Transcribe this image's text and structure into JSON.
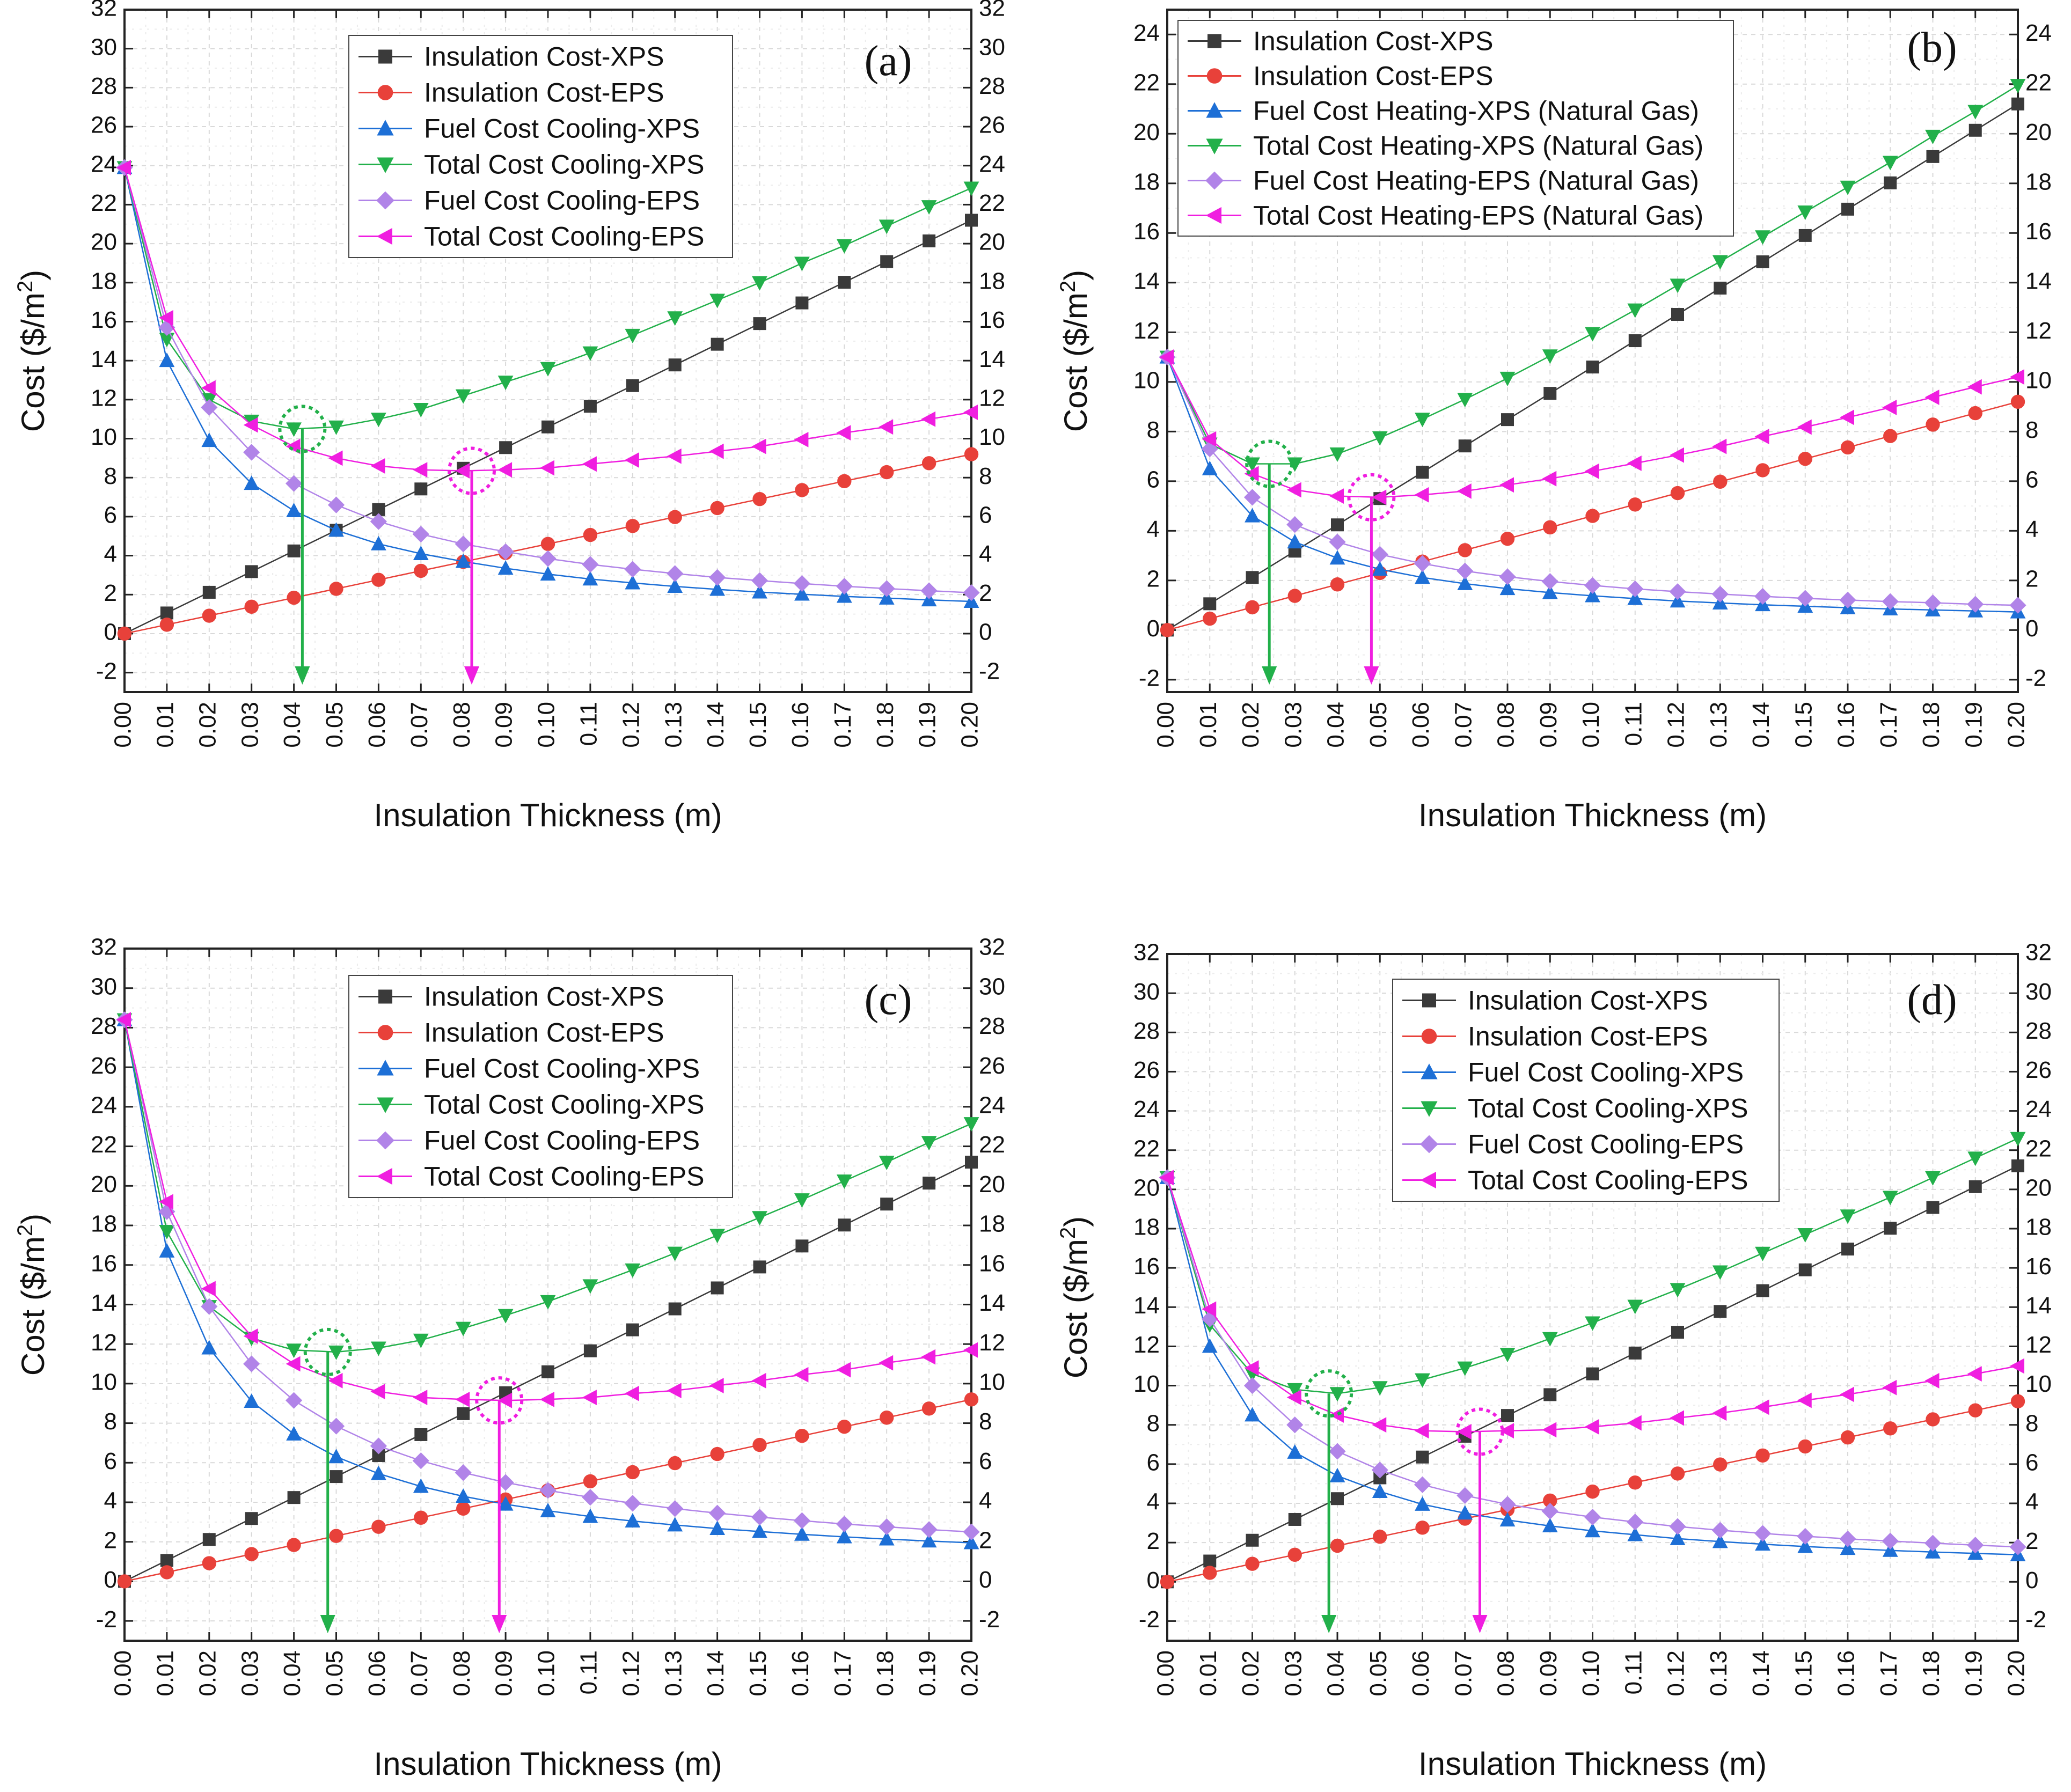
{
  "chart_data": [
    {
      "type": "line",
      "panel_label": "(a)",
      "xlabel": "Insulation Thickness (m)",
      "ylabel": "Cost ($/m",
      "ylabel_sup": "2",
      "ylabel_close": ")",
      "xlim": [
        0,
        0.2
      ],
      "ylim": [
        -3,
        32
      ],
      "x_ticks": [
        "0.00",
        "0.01",
        "0.02",
        "0.03",
        "0.04",
        "0.05",
        "0.06",
        "0.07",
        "0.08",
        "0.09",
        "0.10",
        "0.11",
        "0.12",
        "0.13",
        "0.14",
        "0.15",
        "0.16",
        "0.17",
        "0.18",
        "0.19",
        "0.20"
      ],
      "y_ticks": [
        -2,
        0,
        2,
        4,
        6,
        8,
        10,
        12,
        14,
        16,
        18,
        20,
        22,
        24,
        26,
        28,
        30,
        32
      ],
      "grid": true,
      "legend_position": "top-center",
      "x": [
        0,
        0.01,
        0.02,
        0.03,
        0.04,
        0.05,
        0.06,
        0.07,
        0.08,
        0.09,
        0.1,
        0.11,
        0.12,
        0.13,
        0.14,
        0.15,
        0.16,
        0.17,
        0.18,
        0.19,
        0.2
      ],
      "series": [
        {
          "name": "Insulation Cost-XPS",
          "color": "#3a3a3a",
          "marker": "square",
          "values": [
            0,
            1.06,
            2.12,
            3.18,
            4.24,
            5.3,
            6.36,
            7.42,
            8.48,
            9.54,
            10.6,
            11.66,
            12.72,
            13.78,
            14.84,
            15.9,
            16.96,
            18.02,
            19.08,
            20.14,
            21.2
          ]
        },
        {
          "name": "Insulation Cost-EPS",
          "color": "#e8413a",
          "marker": "circle",
          "values": [
            0,
            0.46,
            0.92,
            1.38,
            1.84,
            2.3,
            2.76,
            3.22,
            3.68,
            4.14,
            4.6,
            5.06,
            5.52,
            5.98,
            6.44,
            6.9,
            7.36,
            7.82,
            8.28,
            8.74,
            9.2
          ]
        },
        {
          "name": "Fuel Cost Cooling-XPS",
          "color": "#1d6fd6",
          "marker": "triangle-up",
          "values": [
            23.9,
            14.0,
            9.9,
            7.7,
            6.3,
            5.3,
            4.6,
            4.1,
            3.7,
            3.35,
            3.05,
            2.8,
            2.6,
            2.42,
            2.27,
            2.13,
            2.02,
            1.91,
            1.82,
            1.73,
            1.65
          ]
        },
        {
          "name": "Total Cost Cooling-XPS",
          "color": "#22b04a",
          "marker": "triangle-down",
          "values": [
            23.9,
            15.1,
            12.0,
            10.9,
            10.5,
            10.6,
            11.0,
            11.5,
            12.2,
            12.9,
            13.6,
            14.4,
            15.3,
            16.2,
            17.1,
            18.0,
            19.0,
            19.9,
            20.9,
            21.9,
            22.85
          ]
        },
        {
          "name": "Fuel Cost Cooling-EPS",
          "color": "#b184e8",
          "marker": "diamond",
          "values": [
            23.9,
            15.7,
            11.6,
            9.3,
            7.7,
            6.6,
            5.75,
            5.1,
            4.6,
            4.2,
            3.85,
            3.55,
            3.3,
            3.08,
            2.88,
            2.72,
            2.57,
            2.43,
            2.31,
            2.2,
            2.1
          ]
        },
        {
          "name": "Total Cost Cooling-EPS",
          "color": "#f01ee0",
          "marker": "triangle-left",
          "values": [
            23.9,
            16.2,
            12.6,
            10.7,
            9.6,
            9.0,
            8.6,
            8.4,
            8.35,
            8.4,
            8.5,
            8.7,
            8.9,
            9.1,
            9.35,
            9.6,
            9.95,
            10.3,
            10.6,
            11.0,
            11.35
          ]
        }
      ],
      "annotations": [
        {
          "type": "optimum-marker",
          "x": 0.042,
          "y": 10.5,
          "color": "#22b04a"
        },
        {
          "type": "optimum-marker",
          "x": 0.082,
          "y": 8.35,
          "color": "#f01ee0"
        }
      ]
    },
    {
      "type": "line",
      "panel_label": "(b)",
      "xlabel": "Insulation Thickness (m)",
      "ylabel": "Cost ($/m",
      "ylabel_sup": "2",
      "ylabel_close": ")",
      "xlim": [
        0,
        0.2
      ],
      "ylim": [
        -2.5,
        25
      ],
      "x_ticks": [
        "0.00",
        "0.01",
        "0.02",
        "0.03",
        "0.04",
        "0.05",
        "0.06",
        "0.07",
        "0.08",
        "0.09",
        "0.10",
        "0.11",
        "0.12",
        "0.13",
        "0.14",
        "0.15",
        "0.16",
        "0.17",
        "0.18",
        "0.19",
        "0.20"
      ],
      "y_ticks": [
        -2,
        0,
        2,
        4,
        6,
        8,
        10,
        12,
        14,
        16,
        18,
        20,
        22,
        24
      ],
      "grid": true,
      "legend_position": "top-center",
      "x": [
        0,
        0.01,
        0.02,
        0.03,
        0.04,
        0.05,
        0.06,
        0.07,
        0.08,
        0.09,
        0.1,
        0.11,
        0.12,
        0.13,
        0.14,
        0.15,
        0.16,
        0.17,
        0.18,
        0.19,
        0.2
      ],
      "series": [
        {
          "name": "Insulation Cost-XPS",
          "color": "#3a3a3a",
          "marker": "square",
          "values": [
            0,
            1.06,
            2.12,
            3.18,
            4.24,
            5.3,
            6.36,
            7.42,
            8.48,
            9.54,
            10.6,
            11.66,
            12.72,
            13.78,
            14.84,
            15.9,
            16.96,
            18.02,
            19.08,
            20.14,
            21.2
          ]
        },
        {
          "name": "Insulation Cost-EPS",
          "color": "#e8413a",
          "marker": "circle",
          "values": [
            0,
            0.46,
            0.92,
            1.38,
            1.84,
            2.3,
            2.76,
            3.22,
            3.68,
            4.14,
            4.6,
            5.06,
            5.52,
            5.98,
            6.44,
            6.9,
            7.36,
            7.82,
            8.28,
            8.74,
            9.2
          ]
        },
        {
          "name": "Fuel Cost Heating-XPS (Natural Gas)",
          "color": "#1d6fd6",
          "marker": "triangle-up",
          "values": [
            11.0,
            6.5,
            4.6,
            3.55,
            2.9,
            2.45,
            2.12,
            1.87,
            1.67,
            1.51,
            1.38,
            1.27,
            1.17,
            1.09,
            1.02,
            0.96,
            0.9,
            0.85,
            0.81,
            0.77,
            0.73
          ]
        },
        {
          "name": "Total Cost Heating-XPS (Natural Gas)",
          "color": "#22b04a",
          "marker": "triangle-down",
          "values": [
            11.0,
            7.5,
            6.7,
            6.7,
            7.1,
            7.75,
            8.5,
            9.3,
            10.15,
            11.05,
            11.95,
            12.9,
            13.9,
            14.85,
            15.85,
            16.85,
            17.85,
            18.85,
            19.9,
            20.9,
            21.95
          ]
        },
        {
          "name": "Fuel Cost Heating-EPS (Natural Gas)",
          "color": "#b184e8",
          "marker": "diamond",
          "values": [
            11.0,
            7.3,
            5.35,
            4.25,
            3.55,
            3.05,
            2.68,
            2.38,
            2.15,
            1.96,
            1.8,
            1.66,
            1.55,
            1.45,
            1.36,
            1.28,
            1.21,
            1.15,
            1.1,
            1.04,
            1.0
          ]
        },
        {
          "name": "Total Cost Heating-EPS (Natural Gas)",
          "color": "#f01ee0",
          "marker": "triangle-left",
          "values": [
            11.0,
            7.7,
            6.3,
            5.65,
            5.4,
            5.35,
            5.45,
            5.6,
            5.85,
            6.1,
            6.4,
            6.72,
            7.05,
            7.4,
            7.8,
            8.18,
            8.57,
            8.97,
            9.38,
            9.8,
            10.2
          ]
        }
      ],
      "annotations": [
        {
          "type": "optimum-marker",
          "x": 0.024,
          "y": 6.7,
          "color": "#22b04a"
        },
        {
          "type": "optimum-marker",
          "x": 0.048,
          "y": 5.35,
          "color": "#f01ee0"
        }
      ]
    },
    {
      "type": "line",
      "panel_label": "(c)",
      "xlabel": "Insulation Thickness (m)",
      "ylabel": "Cost ($/m",
      "ylabel_sup": "2",
      "ylabel_close": ")",
      "xlim": [
        0,
        0.2
      ],
      "ylim": [
        -3,
        32
      ],
      "x_ticks": [
        "0.00",
        "0.01",
        "0.02",
        "0.03",
        "0.04",
        "0.05",
        "0.06",
        "0.07",
        "0.08",
        "0.09",
        "0.10",
        "0.11",
        "0.12",
        "0.13",
        "0.14",
        "0.15",
        "0.16",
        "0.17",
        "0.18",
        "0.19",
        "0.20"
      ],
      "y_ticks": [
        -2,
        0,
        2,
        4,
        6,
        8,
        10,
        12,
        14,
        16,
        18,
        20,
        22,
        24,
        26,
        28,
        30,
        32
      ],
      "grid": true,
      "legend_position": "top-center",
      "x": [
        0,
        0.01,
        0.02,
        0.03,
        0.04,
        0.05,
        0.06,
        0.07,
        0.08,
        0.09,
        0.1,
        0.11,
        0.12,
        0.13,
        0.14,
        0.15,
        0.16,
        0.17,
        0.18,
        0.19,
        0.2
      ],
      "series": [
        {
          "name": "Insulation Cost-XPS",
          "color": "#3a3a3a",
          "marker": "square",
          "values": [
            0,
            1.06,
            2.12,
            3.18,
            4.24,
            5.3,
            6.36,
            7.42,
            8.48,
            9.54,
            10.6,
            11.66,
            12.72,
            13.78,
            14.84,
            15.9,
            16.96,
            18.02,
            19.08,
            20.14,
            21.2
          ]
        },
        {
          "name": "Insulation Cost-EPS",
          "color": "#e8413a",
          "marker": "circle",
          "values": [
            0,
            0.46,
            0.92,
            1.38,
            1.84,
            2.3,
            2.76,
            3.22,
            3.68,
            4.14,
            4.6,
            5.06,
            5.52,
            5.98,
            6.44,
            6.9,
            7.36,
            7.82,
            8.28,
            8.74,
            9.2
          ]
        },
        {
          "name": "Fuel Cost Cooling-XPS",
          "color": "#1d6fd6",
          "marker": "triangle-up",
          "values": [
            28.4,
            16.7,
            11.8,
            9.1,
            7.45,
            6.3,
            5.45,
            4.8,
            4.3,
            3.9,
            3.57,
            3.28,
            3.05,
            2.85,
            2.67,
            2.52,
            2.38,
            2.25,
            2.14,
            2.04,
            1.95
          ]
        },
        {
          "name": "Total Cost Cooling-XPS",
          "color": "#22b04a",
          "marker": "triangle-down",
          "values": [
            28.4,
            17.7,
            13.9,
            12.3,
            11.7,
            11.6,
            11.8,
            12.2,
            12.8,
            13.45,
            14.15,
            14.95,
            15.75,
            16.6,
            17.5,
            18.4,
            19.3,
            20.25,
            21.2,
            22.2,
            23.15
          ]
        },
        {
          "name": "Fuel Cost Cooling-EPS",
          "color": "#b184e8",
          "marker": "diamond",
          "values": [
            28.4,
            18.7,
            13.9,
            11.0,
            9.15,
            7.85,
            6.85,
            6.1,
            5.5,
            5.0,
            4.6,
            4.25,
            3.95,
            3.68,
            3.45,
            3.25,
            3.07,
            2.9,
            2.76,
            2.62,
            2.5
          ]
        },
        {
          "name": "Total Cost Cooling-EPS",
          "color": "#f01ee0",
          "marker": "triangle-left",
          "values": [
            28.4,
            19.2,
            14.8,
            12.4,
            11.0,
            10.15,
            9.6,
            9.3,
            9.2,
            9.15,
            9.2,
            9.3,
            9.5,
            9.65,
            9.9,
            10.15,
            10.45,
            10.7,
            11.05,
            11.35,
            11.7
          ]
        }
      ],
      "annotations": [
        {
          "type": "optimum-marker",
          "x": 0.048,
          "y": 11.6,
          "color": "#22b04a"
        },
        {
          "type": "optimum-marker",
          "x": 0.0885,
          "y": 9.15,
          "color": "#f01ee0"
        }
      ]
    },
    {
      "type": "line",
      "panel_label": "(d)",
      "xlabel": "Insulation Thickness (m)",
      "ylabel": "Cost ($/m",
      "ylabel_sup": "2",
      "ylabel_close": ")",
      "xlim": [
        0,
        0.2
      ],
      "ylim": [
        -3,
        32
      ],
      "x_ticks": [
        "0.00",
        "0.01",
        "0.02",
        "0.03",
        "0.04",
        "0.05",
        "0.06",
        "0.07",
        "0.08",
        "0.09",
        "0.10",
        "0.11",
        "0.12",
        "0.13",
        "0.14",
        "0.15",
        "0.16",
        "0.17",
        "0.18",
        "0.19",
        "0.20"
      ],
      "y_ticks": [
        -2,
        0,
        2,
        4,
        6,
        8,
        10,
        12,
        14,
        16,
        18,
        20,
        22,
        24,
        26,
        28,
        30,
        32
      ],
      "grid": true,
      "legend_position": "top-right",
      "x": [
        0,
        0.01,
        0.02,
        0.03,
        0.04,
        0.05,
        0.06,
        0.07,
        0.08,
        0.09,
        0.1,
        0.11,
        0.12,
        0.13,
        0.14,
        0.15,
        0.16,
        0.17,
        0.18,
        0.19,
        0.2
      ],
      "series": [
        {
          "name": "Insulation Cost-XPS",
          "color": "#3a3a3a",
          "marker": "square",
          "values": [
            0,
            1.06,
            2.12,
            3.18,
            4.24,
            5.3,
            6.36,
            7.42,
            8.48,
            9.54,
            10.6,
            11.66,
            12.72,
            13.78,
            14.84,
            15.9,
            16.96,
            18.02,
            19.08,
            20.14,
            21.2
          ]
        },
        {
          "name": "Insulation Cost-EPS",
          "color": "#e8413a",
          "marker": "circle",
          "values": [
            0,
            0.46,
            0.92,
            1.38,
            1.84,
            2.3,
            2.76,
            3.22,
            3.68,
            4.14,
            4.6,
            5.06,
            5.52,
            5.98,
            6.44,
            6.9,
            7.36,
            7.82,
            8.28,
            8.74,
            9.2
          ]
        },
        {
          "name": "Fuel Cost Cooling-XPS",
          "color": "#1d6fd6",
          "marker": "triangle-up",
          "values": [
            20.6,
            12.0,
            8.5,
            6.6,
            5.4,
            4.6,
            3.95,
            3.5,
            3.15,
            2.85,
            2.6,
            2.4,
            2.2,
            2.05,
            1.92,
            1.8,
            1.7,
            1.6,
            1.52,
            1.45,
            1.38
          ]
        },
        {
          "name": "Total Cost Cooling-XPS",
          "color": "#22b04a",
          "marker": "triangle-down",
          "values": [
            20.6,
            13.1,
            10.6,
            9.8,
            9.6,
            9.9,
            10.3,
            10.9,
            11.6,
            12.4,
            13.2,
            14.05,
            14.9,
            15.8,
            16.75,
            17.7,
            18.65,
            19.6,
            20.6,
            21.6,
            22.6
          ]
        },
        {
          "name": "Fuel Cost Cooling-EPS",
          "color": "#b184e8",
          "marker": "diamond",
          "values": [
            20.6,
            13.4,
            10.0,
            8.0,
            6.65,
            5.7,
            4.95,
            4.4,
            3.95,
            3.6,
            3.3,
            3.05,
            2.82,
            2.63,
            2.47,
            2.32,
            2.19,
            2.08,
            1.97,
            1.87,
            1.78
          ]
        },
        {
          "name": "Total Cost Cooling-EPS",
          "color": "#f01ee0",
          "marker": "triangle-left",
          "values": [
            20.6,
            13.9,
            10.9,
            9.4,
            8.5,
            8.0,
            7.7,
            7.65,
            7.7,
            7.75,
            7.9,
            8.1,
            8.35,
            8.6,
            8.9,
            9.25,
            9.55,
            9.9,
            10.25,
            10.6,
            11.0
          ]
        }
      ],
      "annotations": [
        {
          "type": "optimum-marker",
          "x": 0.038,
          "y": 9.6,
          "color": "#22b04a"
        },
        {
          "type": "optimum-marker",
          "x": 0.0735,
          "y": 7.65,
          "color": "#f01ee0"
        }
      ]
    }
  ]
}
